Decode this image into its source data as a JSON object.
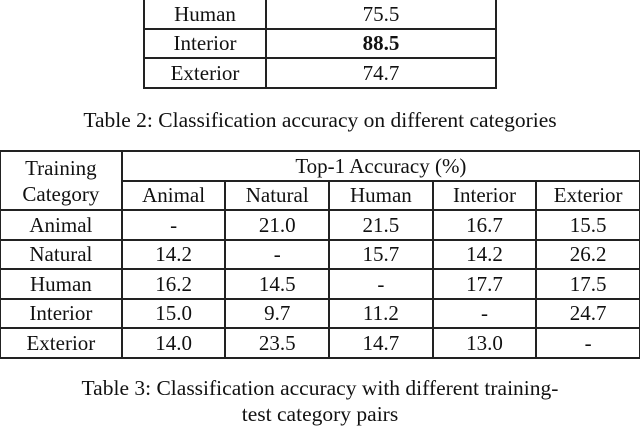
{
  "table2": {
    "rows": [
      {
        "category": "Human",
        "value": "75.5",
        "bold": false
      },
      {
        "category": "Interior",
        "value": "88.5",
        "bold": true
      },
      {
        "category": "Exterior",
        "value": "74.7",
        "bold": false
      }
    ],
    "caption": "Table 2: Classification accuracy on different categories"
  },
  "table3": {
    "row_header_line1": "Training",
    "row_header_line2": "Category",
    "group_header": "Top-1 Accuracy (%)",
    "columns": [
      "Animal",
      "Natural",
      "Human",
      "Interior",
      "Exterior"
    ],
    "rows": [
      {
        "label": "Animal",
        "values": [
          "-",
          "21.0",
          "21.5",
          "16.7",
          "15.5"
        ]
      },
      {
        "label": "Natural",
        "values": [
          "14.2",
          "-",
          "15.7",
          "14.2",
          "26.2"
        ]
      },
      {
        "label": "Human",
        "values": [
          "16.2",
          "14.5",
          "-",
          "17.7",
          "17.5"
        ]
      },
      {
        "label": "Interior",
        "values": [
          "15.0",
          "9.7",
          "11.2",
          "-",
          "24.7"
        ]
      },
      {
        "label": "Exterior",
        "values": [
          "14.0",
          "23.5",
          "14.7",
          "13.0",
          "-"
        ]
      }
    ],
    "caption_line1": "Table 3: Classification accuracy with different training-",
    "caption_line2": "test category pairs"
  }
}
